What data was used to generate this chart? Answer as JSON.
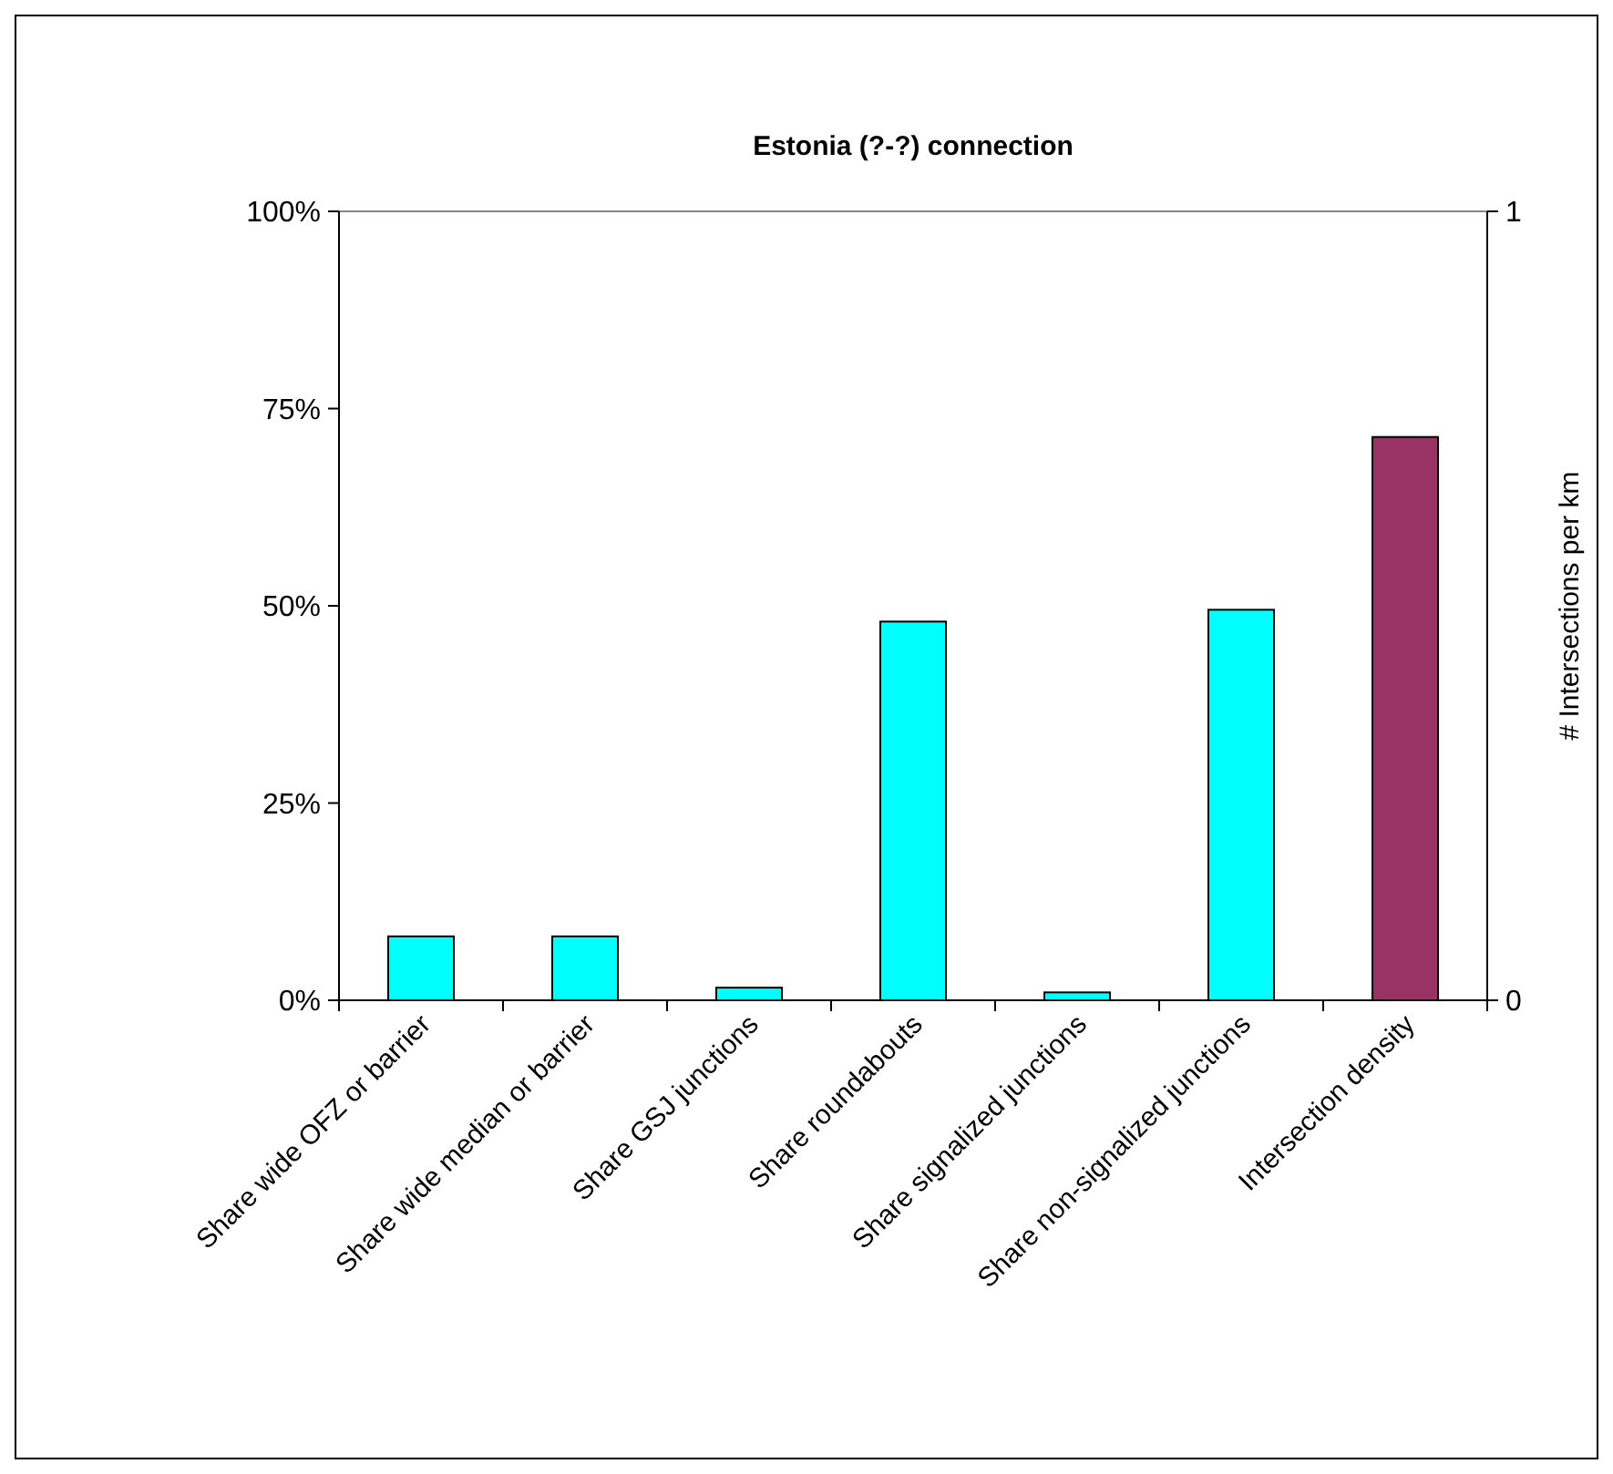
{
  "chart_data": {
    "type": "bar",
    "title": "Estonia (?-?) connection",
    "y2label": "# Intersections per km",
    "categories": [
      "Share wide OFZ or barrier",
      "Share wide median or barrier",
      "Share GSJ junctions",
      "Share roundabouts",
      "Share signalized junctions",
      "Share non-signalized junctions",
      "Intersection density"
    ],
    "series": [
      {
        "color": "#00ffff",
        "values": [
          0.081,
          0.081,
          0.016,
          0.48,
          0.01,
          0.495,
          null
        ]
      },
      {
        "color": "#993366",
        "axis": "y2",
        "values": [
          null,
          null,
          null,
          null,
          null,
          null,
          0.714
        ]
      }
    ],
    "ylim": [
      0,
      1
    ],
    "yticks": [
      {
        "value": 0,
        "label": "0%"
      },
      {
        "value": 0.25,
        "label": "25%"
      },
      {
        "value": 0.5,
        "label": "50%"
      },
      {
        "value": 0.75,
        "label": "75%"
      },
      {
        "value": 1,
        "label": "100%"
      }
    ],
    "y2lim": [
      0,
      1
    ],
    "y2ticks": [
      0,
      1
    ],
    "grid": false
  }
}
